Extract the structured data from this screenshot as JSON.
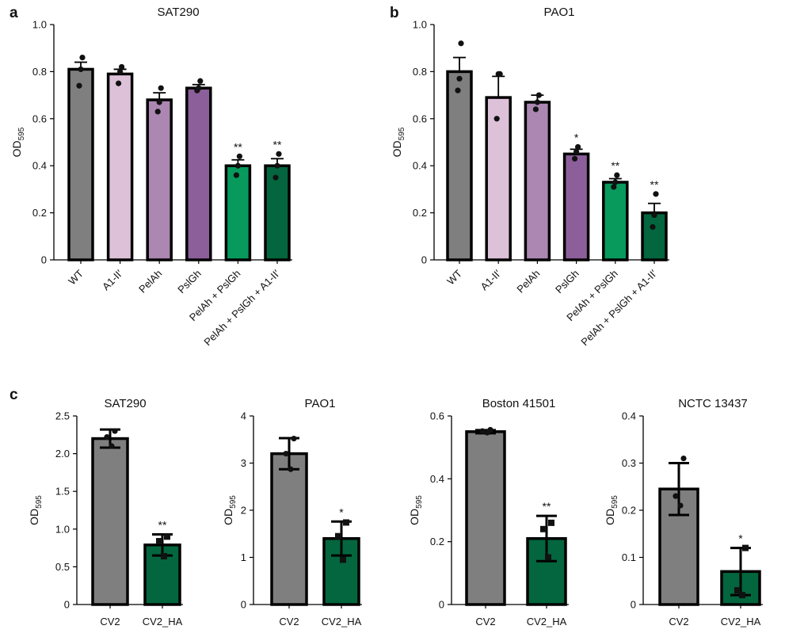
{
  "panel_letters": [
    "a",
    "b",
    "c"
  ],
  "colors": {
    "grey": "#7f7f7f",
    "light_pink": "#dcc1d8",
    "light_purple": "#ab87b2",
    "purple": "#8c5f9a",
    "green": "#079a5c",
    "dark_green": "#03663e",
    "outline": "#000000"
  },
  "y_label": {
    "main": "OD",
    "sub": "595"
  },
  "chart_data": [
    {
      "panel": "a",
      "type": "bar",
      "title": "SAT290",
      "ylabel": "OD595",
      "ylim": [
        0,
        1.0
      ],
      "yticks": [
        "0",
        "0.2",
        "0.4",
        "0.6",
        "0.8",
        "1.0"
      ],
      "categories": [
        "WT",
        "A1-II′",
        "PelAh",
        "PslGh",
        "PelAh + PslGh",
        "PelAh + PslGh + A1-II′"
      ],
      "values": [
        0.81,
        0.79,
        0.68,
        0.73,
        0.4,
        0.4
      ],
      "error_bars": [
        0.03,
        0.02,
        0.03,
        0.015,
        0.025,
        0.03
      ],
      "points": [
        [
          0.86,
          0.81,
          0.74
        ],
        [
          0.82,
          0.8,
          0.75
        ],
        [
          0.73,
          0.67,
          0.63
        ],
        [
          0.76,
          0.73,
          0.72
        ],
        [
          0.44,
          0.4,
          0.36
        ],
        [
          0.45,
          0.4,
          0.35
        ]
      ],
      "significance": [
        "",
        "",
        "",
        "",
        "**",
        "**"
      ],
      "bar_colors": [
        "grey",
        "light_pink",
        "light_purple",
        "purple",
        "green",
        "dark_green"
      ]
    },
    {
      "panel": "b",
      "type": "bar",
      "title": "PAO1",
      "ylabel": "OD595",
      "ylim": [
        0,
        1.0
      ],
      "yticks": [
        "0",
        "0.2",
        "0.4",
        "0.6",
        "0.8",
        "1.0"
      ],
      "categories": [
        "WT",
        "A1-II′",
        "PelAh",
        "PslGh",
        "PelAh + PslGh",
        "PelAh + PslGh + A1-II′"
      ],
      "values": [
        0.8,
        0.69,
        0.67,
        0.45,
        0.33,
        0.2
      ],
      "error_bars": [
        0.06,
        0.09,
        0.03,
        0.02,
        0.015,
        0.04
      ],
      "points": [
        [
          0.92,
          0.77,
          0.72
        ],
        [
          0.79,
          0.79,
          0.6
        ],
        [
          0.7,
          0.67,
          0.64
        ],
        [
          0.48,
          0.46,
          0.43
        ],
        [
          0.36,
          0.33,
          0.31
        ],
        [
          0.28,
          0.19,
          0.14
        ]
      ],
      "significance": [
        "",
        "",
        "",
        "*",
        "**",
        "**"
      ],
      "bar_colors": [
        "grey",
        "light_pink",
        "light_purple",
        "purple",
        "green",
        "dark_green"
      ]
    },
    {
      "panel": "c",
      "type": "bar",
      "title": "SAT290",
      "ylabel": "OD595",
      "ylim": [
        0,
        2.5
      ],
      "yticks": [
        "0",
        "0.5",
        "1.0",
        "1.5",
        "2.0",
        "2.5"
      ],
      "categories": [
        "CV2",
        "CV2_HA"
      ],
      "values": [
        2.2,
        0.79
      ],
      "error_bars": [
        0.12,
        0.14
      ],
      "points": [
        [
          2.3,
          2.22,
          2.1
        ],
        [
          0.9,
          0.84,
          0.64
        ]
      ],
      "significance": [
        "",
        "**"
      ],
      "bar_colors": [
        "grey",
        "dark_green"
      ]
    },
    {
      "panel": "c",
      "type": "bar",
      "title": "PAO1",
      "ylabel": "OD595",
      "ylim": [
        0,
        4
      ],
      "yticks": [
        "0",
        "1",
        "2",
        "3",
        "4"
      ],
      "categories": [
        "CV2",
        "CV2_HA"
      ],
      "values": [
        3.2,
        1.4
      ],
      "error_bars": [
        0.33,
        0.36
      ],
      "points": [
        [
          3.52,
          3.2,
          2.87
        ],
        [
          1.74,
          1.45,
          0.95
        ]
      ],
      "significance": [
        "",
        "*"
      ],
      "bar_colors": [
        "grey",
        "dark_green"
      ]
    },
    {
      "panel": "c",
      "type": "bar",
      "title": "Boston 41501",
      "ylabel": "OD595",
      "ylim": [
        0,
        0.6
      ],
      "yticks": [
        "0",
        "0.2",
        "0.4",
        "0.6"
      ],
      "categories": [
        "CV2",
        "CV2_HA"
      ],
      "values": [
        0.55,
        0.21
      ],
      "error_bars": [
        0.005,
        0.072
      ],
      "points": [
        [
          0.556,
          0.552,
          0.547
        ],
        [
          0.26,
          0.24,
          0.15
        ]
      ],
      "significance": [
        "",
        "**"
      ],
      "bar_colors": [
        "grey",
        "dark_green"
      ]
    },
    {
      "panel": "c",
      "type": "bar",
      "title": "NCTC 13437",
      "ylabel": "OD595",
      "ylim": [
        0,
        0.4
      ],
      "yticks": [
        "0",
        "0.1",
        "0.2",
        "0.3",
        "0.4"
      ],
      "categories": [
        "CV2",
        "CV2_HA"
      ],
      "values": [
        0.245,
        0.07
      ],
      "error_bars": [
        0.055,
        0.05
      ],
      "points": [
        [
          0.31,
          0.23,
          0.21
        ],
        [
          0.12,
          0.03,
          0.02
        ]
      ],
      "significance": [
        "",
        "*"
      ],
      "bar_colors": [
        "grey",
        "dark_green"
      ]
    }
  ]
}
